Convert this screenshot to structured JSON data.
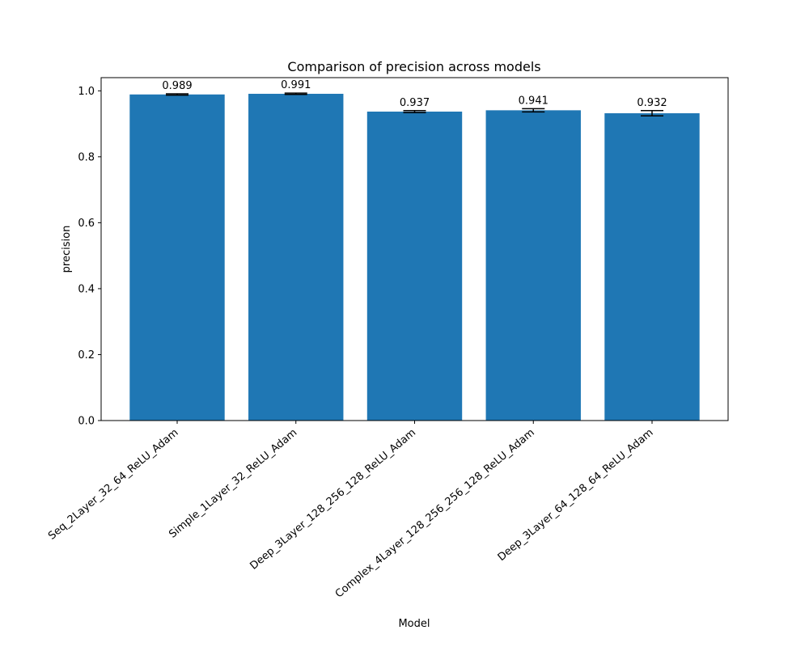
{
  "chart_data": {
    "type": "bar",
    "title": "Comparison of precision across models",
    "xlabel": "Model",
    "ylabel": "precision",
    "categories": [
      "Seq_2Layer_32_64_ReLU_Adam",
      "Simple_1Layer_32_ReLU_Adam",
      "Deep_3Layer_128_256_128_ReLU_Adam",
      "Complex_4Layer_128_256_256_128_ReLU_Adam",
      "Deep_3Layer_64_128_64_ReLU_Adam"
    ],
    "values": [
      0.989,
      0.991,
      0.937,
      0.941,
      0.932
    ],
    "value_labels": [
      "0.989",
      "0.991",
      "0.937",
      "0.941",
      "0.932"
    ],
    "errors": [
      0.002,
      0.002,
      0.003,
      0.005,
      0.008
    ],
    "ylim": [
      0,
      1.04
    ],
    "yticks": [
      0.0,
      0.2,
      0.4,
      0.6,
      0.8,
      1.0
    ],
    "ytick_labels": [
      "0.0",
      "0.2",
      "0.4",
      "0.6",
      "0.8",
      "1.0"
    ],
    "grid": false,
    "bar_color": "#1f77b4",
    "errorbar_color": "#000000"
  }
}
